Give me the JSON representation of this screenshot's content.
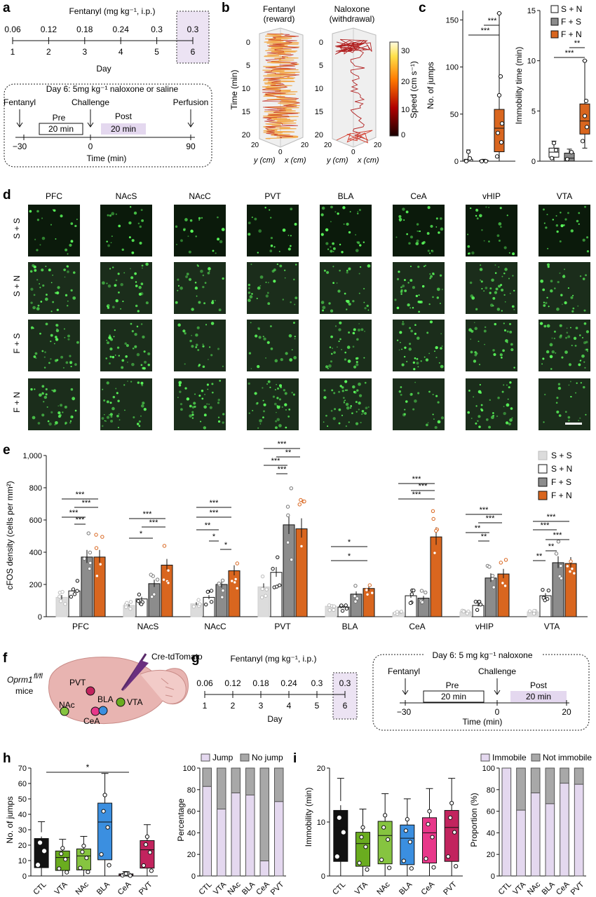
{
  "panel_labels": [
    "a",
    "b",
    "c",
    "d",
    "e",
    "f",
    "g",
    "h",
    "i"
  ],
  "a": {
    "title": "Fentanyl (mg kg⁻¹, i.p.)",
    "doses": [
      "0.06",
      "0.12",
      "0.18",
      "0.24",
      "0.3",
      "0.3"
    ],
    "days": [
      "1",
      "2",
      "3",
      "4",
      "5",
      "6"
    ],
    "day_label": "Day",
    "box_title": "Day 6: 5mg kg⁻¹ naloxone or saline",
    "fentanyl": "Fentanyl",
    "challenge": "Challenge",
    "perfusion": "Perfusion",
    "pre": "Pre",
    "post": "Post",
    "pre_dur": "20 min",
    "post_dur": "20 min",
    "ticks": [
      "−30",
      "0",
      "90"
    ],
    "time_label": "Time (min)"
  },
  "b": {
    "left_title": "Fentanyl",
    "left_sub": "(reward)",
    "right_title": "Naloxone",
    "right_sub": "(withdrawal)",
    "ylabel": "Time (min)",
    "yticks": [
      "0",
      "5",
      "10",
      "15",
      "20"
    ],
    "axis_y": "y (cm)",
    "axis_x": "x (cm)",
    "axis_ticks": [
      "20",
      "0",
      "20"
    ],
    "cbar_label": "Speed (cm s⁻¹)",
    "cbar_ticks": [
      "30",
      "20",
      "10",
      "0"
    ]
  },
  "c": {
    "left_ylabel": "No. of jumps",
    "left_yticks": [
      "0",
      "50",
      "100",
      "150"
    ],
    "right_ylabel": "Immobility time (min)",
    "right_yticks": [
      "0",
      "5",
      "10",
      "15"
    ],
    "sig": [
      "***",
      "***",
      "***",
      "**"
    ],
    "legend": [
      "S + N",
      "F + S",
      "F + N"
    ],
    "colors": {
      "SN": "#ffffff",
      "FS": "#8c8c8c",
      "FN": "#d9661f"
    }
  },
  "d": {
    "regions": [
      "PFC",
      "NAcS",
      "NAcC",
      "PVT",
      "BLA",
      "CeA",
      "vHIP",
      "VTA"
    ],
    "rows": [
      "S + S",
      "S + N",
      "F + S",
      "F + N"
    ]
  },
  "e": {
    "ylabel": "cFOS density (cells per mm²)",
    "yticks": [
      "0",
      "200",
      "400",
      "600",
      "800",
      "1,000"
    ],
    "sig": [
      "***",
      "***",
      "***",
      "***",
      "***",
      "***",
      "*",
      "***",
      "***",
      "**",
      "*",
      "*",
      "***",
      "**",
      "***",
      "***",
      "*",
      "*",
      "***",
      "***",
      "***",
      "***",
      "***",
      "**",
      "**",
      "***",
      "***",
      "***",
      "**",
      "**"
    ],
    "legend": [
      "S + S",
      "S + N",
      "F + S",
      "F + N"
    ],
    "colors": {
      "SS": "#dcdcdc",
      "SN": "#ffffff",
      "FS": "#8c8c8c",
      "FN": "#d9661f"
    }
  },
  "chart_data": [
    {
      "type": "bar",
      "title": "",
      "ylabel": "cFOS density (cells per mm²)",
      "ylim": [
        0,
        1000
      ],
      "categories": [
        "PFC",
        "NAcS",
        "NAcC",
        "PVT",
        "BLA",
        "CeA",
        "vHIP",
        "VTA"
      ],
      "series": [
        {
          "name": "S + S",
          "values": [
            120,
            70,
            80,
            185,
            65,
            25,
            30,
            30
          ]
        },
        {
          "name": "S + N",
          "values": [
            160,
            110,
            120,
            275,
            60,
            130,
            70,
            130
          ]
        },
        {
          "name": "F + S",
          "values": [
            370,
            205,
            200,
            570,
            140,
            115,
            240,
            335
          ]
        },
        {
          "name": "F + N",
          "values": [
            370,
            320,
            285,
            545,
            175,
            495,
            265,
            330
          ]
        }
      ]
    },
    {
      "type": "bar",
      "title": "",
      "ylabel": "No. of jumps",
      "ylim": [
        0,
        70
      ],
      "categories": [
        "CTL",
        "VTA",
        "NAc",
        "BLA",
        "CeA",
        "PVT"
      ],
      "values": [
        18,
        12,
        13,
        35,
        1,
        17
      ]
    },
    {
      "type": "bar",
      "title": "",
      "ylabel": "Percentage",
      "ylim": [
        0,
        100
      ],
      "categories": [
        "CTL",
        "VTA",
        "NAc",
        "BLA",
        "CeA",
        "PVT"
      ],
      "series": [
        {
          "name": "Jump",
          "values": [
            83,
            62,
            77,
            75,
            14,
            69
          ]
        },
        {
          "name": "No jump",
          "values": [
            17,
            38,
            23,
            25,
            86,
            31
          ]
        }
      ]
    },
    {
      "type": "bar",
      "title": "",
      "ylabel": "Immobility (min)",
      "ylim": [
        0,
        20
      ],
      "categories": [
        "CTL",
        "VTA",
        "NAc",
        "BLA",
        "CeA",
        "PVT"
      ],
      "values": [
        9,
        6,
        7.5,
        7,
        8,
        9
      ]
    },
    {
      "type": "bar",
      "title": "",
      "ylabel": "Proportion (%)",
      "ylim": [
        0,
        100
      ],
      "categories": [
        "CTL",
        "VTA",
        "NAc",
        "BLA",
        "CeA",
        "PVT"
      ],
      "series": [
        {
          "name": "Immobile",
          "values": [
            100,
            61,
            77,
            67,
            86,
            85
          ]
        },
        {
          "name": "Not immobile",
          "values": [
            0,
            39,
            23,
            33,
            14,
            15
          ]
        }
      ]
    }
  ],
  "f": {
    "mice": "Oprm1",
    "mice_sup": "fl/fl",
    "mice2": "mice",
    "virus": "Cre-tdTomato",
    "regions": [
      "PVT",
      "BLA",
      "NAc",
      "CeA",
      "VTA"
    ]
  },
  "g": {
    "title": "Fentanyl (mg kg⁻¹, i.p.)",
    "doses": [
      "0.06",
      "0.12",
      "0.18",
      "0.24",
      "0.3",
      "0.3"
    ],
    "days": [
      "1",
      "2",
      "3",
      "4",
      "5",
      "6"
    ],
    "day_label": "Day",
    "box_title": "Day 6: 5 mg kg⁻¹ naloxone",
    "fentanyl": "Fentanyl",
    "challenge": "Challenge",
    "pre": "Pre",
    "post": "Post",
    "pre_dur": "20 min",
    "post_dur": "20 min",
    "ticks": [
      "−30",
      "0",
      "20"
    ],
    "time_label": "Time (min)"
  },
  "h": {
    "ylabel": "No. of jumps",
    "yticks": [
      "0",
      "10",
      "20",
      "30",
      "40",
      "50",
      "60",
      "70"
    ],
    "sig": "*",
    "right_ylabel": "Percentage",
    "right_yticks": [
      "0",
      "20",
      "40",
      "60",
      "80",
      "100"
    ],
    "legend": [
      "Jump",
      "No jump"
    ]
  },
  "i": {
    "ylabel": "Immobility (min)",
    "yticks": [
      "0",
      "10",
      "20"
    ],
    "right_ylabel": "Proportion (%)",
    "right_yticks": [
      "0",
      "20",
      "40",
      "60",
      "80",
      "100"
    ],
    "legend": [
      "Immobile",
      "Not immobile"
    ]
  },
  "group_colors": {
    "CTL": "#111111",
    "VTA": "#6aac1f",
    "NAc": "#86c440",
    "BLA": "#3b8fe0",
    "CeA": "#e8388a",
    "PVT": "#c2245e"
  }
}
